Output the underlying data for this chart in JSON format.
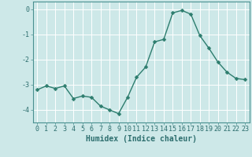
{
  "x": [
    0,
    1,
    2,
    3,
    4,
    5,
    6,
    7,
    8,
    9,
    10,
    11,
    12,
    13,
    14,
    15,
    16,
    17,
    18,
    19,
    20,
    21,
    22,
    23
  ],
  "y": [
    -3.2,
    -3.05,
    -3.15,
    -3.05,
    -3.55,
    -3.45,
    -3.5,
    -3.85,
    -4.0,
    -4.15,
    -3.5,
    -2.7,
    -2.3,
    -1.3,
    -1.2,
    -0.15,
    -0.05,
    -0.2,
    -1.05,
    -1.55,
    -2.1,
    -2.5,
    -2.75,
    -2.8
  ],
  "line_color": "#2d7d6e",
  "marker": "D",
  "marker_size": 2.5,
  "bg_color": "#cde8e8",
  "grid_color": "#b0d4d4",
  "xlabel": "Humidex (Indice chaleur)",
  "ylim": [
    -4.5,
    0.3
  ],
  "xlim": [
    -0.5,
    23.5
  ],
  "yticks": [
    0,
    -1,
    -2,
    -3,
    -4
  ],
  "xticks": [
    0,
    1,
    2,
    3,
    4,
    5,
    6,
    7,
    8,
    9,
    10,
    11,
    12,
    13,
    14,
    15,
    16,
    17,
    18,
    19,
    20,
    21,
    22,
    23
  ],
  "tick_color": "#2d6e6e",
  "label_fontsize": 7,
  "tick_fontsize": 6,
  "spine_color": "#4a9090",
  "line_width": 1.0
}
